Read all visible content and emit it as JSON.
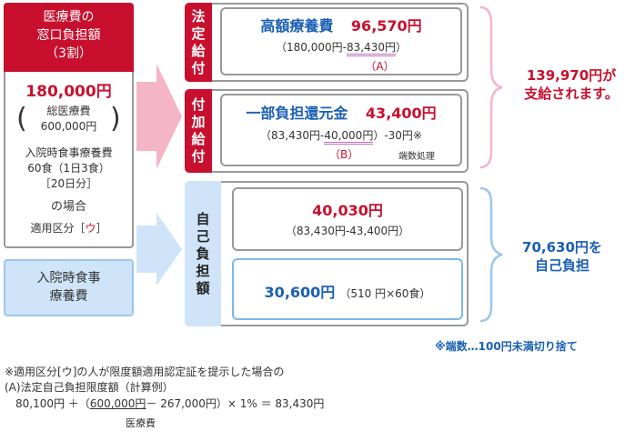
{
  "left": {
    "header_line1": "医療費の",
    "header_line2": "窓口負担額",
    "header_line3": "（3割）",
    "amount": "180,000円",
    "total_line1": "総医療費",
    "total_line2": "600,000円",
    "meal_line1": "入院時食事療養費",
    "meal_line2": "60食（1日3食）",
    "meal_line3": "［20日分］",
    "case": "の場合",
    "class_prefix": "適用区分［",
    "class_value": "ウ",
    "class_suffix": "］"
  },
  "meal_box": {
    "line1": "入院時食事",
    "line2": "療養費"
  },
  "sections": {
    "statutory": {
      "label": [
        "法",
        "定",
        "給",
        "付"
      ],
      "name": "高額療養費",
      "amount": "96,570円",
      "calc_prefix": "（180,000円-",
      "calc_highlight": "83,430円",
      "calc_suffix": "）",
      "marker": "（A）"
    },
    "additional": {
      "label": [
        "付",
        "加",
        "給",
        "付"
      ],
      "name": "一部負担還元金",
      "amount": "43,400円",
      "calc_prefix": "（83,430円-",
      "calc_highlight": "40,000円",
      "calc_suffix": "）-30円※",
      "marker": "（B）",
      "rounding_label": "端数処理"
    },
    "self_pay": {
      "label": [
        "自",
        "己",
        "負",
        "担",
        "額"
      ],
      "amount1": "40,030円",
      "calc1": "（83,430円-43,400円）",
      "amount2": "30,600円",
      "calc2": "（510 円×60食）"
    }
  },
  "results": {
    "paid_line1": "139,970円が",
    "paid_line2": "支給されます。",
    "self_line1": "70,630円を",
    "self_line2": "自己負担"
  },
  "notes": {
    "rounding": "※端数…100円未満切り捨て",
    "note1": "※適用区分[ウ]の人が限度額適用認定証を提示した場合の",
    "note2": "(A)法定自己負担限度額（計算例）",
    "formula_a": "80,100円 ＋（",
    "formula_b": "600,000円",
    "formula_c": "－ 267,000円）× 1% ＝ 83,430円",
    "formula_under": "医療費"
  },
  "colors": {
    "red": "#c8102e",
    "blue": "#1a5fb4",
    "light_blue": "#cfe4f8",
    "pink_arrow": "#f4b6c6"
  }
}
